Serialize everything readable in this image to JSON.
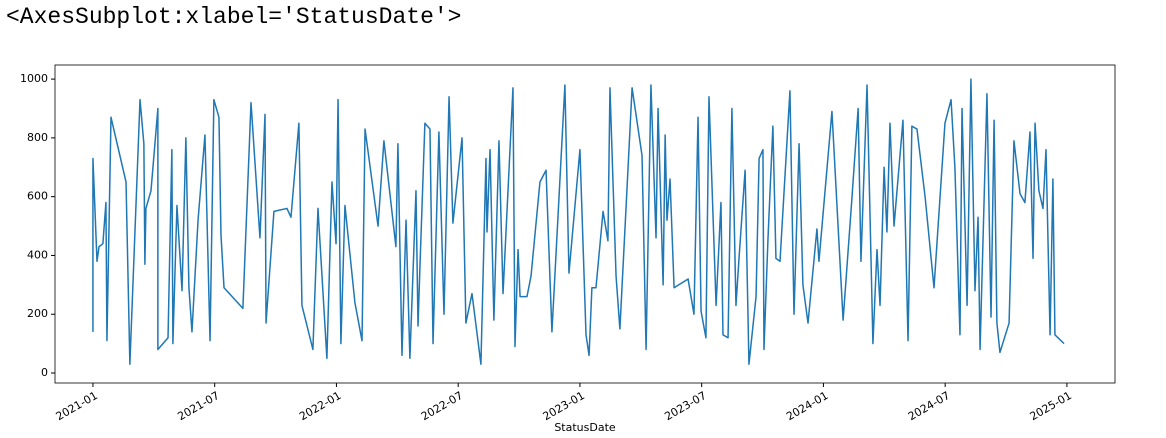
{
  "header": {
    "output": "<AxesSubplot:xlabel='StatusDate'>"
  },
  "chart_data": {
    "type": "line",
    "xlabel": "StatusDate",
    "x": [
      0.0,
      0.0,
      0.2,
      0.3,
      0.49,
      0.64,
      0.69,
      0.89,
      1.63,
      1.82,
      2.32,
      2.51,
      2.56,
      2.61,
      2.86,
      3.2,
      3.2,
      3.7,
      3.89,
      3.94,
      4.14,
      4.39,
      4.58,
      4.73,
      4.88,
      5.18,
      5.52,
      5.77,
      5.96,
      6.21,
      6.31,
      6.46,
      7.39,
      7.79,
      8.23,
      8.48,
      8.53,
      8.92,
      9.56,
      9.76,
      10.15,
      10.3,
      10.84,
      11.09,
      11.53,
      11.78,
      11.98,
      12.08,
      12.22,
      12.42,
      12.91,
      13.26,
      13.41,
      14.05,
      14.34,
      14.93,
      15.03,
      15.23,
      15.43,
      15.62,
      15.92,
      16.02,
      16.12,
      16.36,
      16.61,
      16.76,
      17.05,
      17.3,
      17.55,
      17.74,
      18.19,
      18.38,
      18.68,
      19.12,
      19.37,
      19.42,
      19.57,
      19.76,
      20.01,
      20.21,
      20.7,
      20.8,
      20.95,
      21.05,
      21.39,
      21.59,
      22.03,
      22.33,
      22.62,
      23.26,
      23.46,
      24.0,
      24.3,
      24.45,
      24.59,
      24.79,
      25.14,
      25.38,
      25.48,
      25.78,
      25.97,
      26.57,
      27.06,
      27.26,
      27.5,
      27.75,
      27.85,
      28.1,
      28.2,
      28.29,
      28.44,
      28.64,
      29.33,
      29.62,
      29.82,
      29.97,
      30.21,
      30.36,
      30.71,
      30.95,
      31.05,
      31.3,
      31.49,
      31.69,
      31.84,
      32.14,
      32.33,
      32.68,
      32.83,
      33.02,
      33.07,
      33.27,
      33.51,
      33.66,
      33.86,
      34.35,
      34.55,
      34.8,
      34.99,
      35.24,
      35.68,
      35.78,
      36.42,
      36.97,
      37.41,
      37.71,
      37.85,
      38.15,
      38.44,
      38.64,
      38.79,
      38.99,
      39.13,
      39.28,
      39.48,
      39.92,
      40.17,
      40.36,
      40.61,
      41.01,
      41.45,
      41.99,
      42.29,
      42.48,
      42.73,
      42.83,
      43.08,
      43.27,
      43.47,
      43.62,
      43.72,
      44.06,
      44.26,
      44.41,
      44.55,
      44.7,
      45.15,
      45.39,
      45.69,
      45.93,
      46.18,
      46.33,
      46.43,
      46.62,
      46.82,
      46.97,
      47.17,
      47.31,
      47.41,
      47.86
    ],
    "series": [
      {
        "color": "#1f77b4",
        "values": [
          140,
          730,
          380,
          430,
          440,
          580,
          110,
          870,
          650,
          30,
          930,
          780,
          370,
          560,
          620,
          900,
          80,
          120,
          760,
          100,
          570,
          280,
          800,
          290,
          140,
          520,
          810,
          110,
          930,
          870,
          470,
          290,
          220,
          920,
          460,
          880,
          170,
          550,
          560,
          530,
          850,
          230,
          80,
          560,
          50,
          650,
          440,
          930,
          100,
          570,
          240,
          110,
          830,
          500,
          790,
          430,
          780,
          60,
          520,
          50,
          620,
          160,
          370,
          850,
          830,
          100,
          820,
          200,
          940,
          510,
          800,
          170,
          270,
          30,
          730,
          480,
          760,
          180,
          790,
          270,
          970,
          90,
          420,
          260,
          260,
          330,
          650,
          690,
          140,
          980,
          340,
          760,
          130,
          60,
          290,
          290,
          550,
          450,
          970,
          330,
          150,
          970,
          740,
          80,
          980,
          460,
          900,
          300,
          810,
          520,
          660,
          290,
          320,
          200,
          870,
          210,
          120,
          940,
          230,
          580,
          130,
          120,
          900,
          230,
          390,
          690,
          30,
          260,
          730,
          760,
          80,
          460,
          840,
          390,
          380,
          960,
          200,
          780,
          300,
          170,
          490,
          380,
          890,
          180,
          600,
          900,
          380,
          980,
          100,
          420,
          230,
          700,
          480,
          850,
          500,
          860,
          110,
          840,
          830,
          600,
          290,
          850,
          930,
          700,
          130,
          900,
          230,
          1000,
          280,
          530,
          80,
          950,
          190,
          860,
          170,
          70,
          170,
          790,
          610,
          580,
          820,
          390,
          850,
          620,
          560,
          760,
          130,
          660,
          130,
          100
        ]
      }
    ],
    "xlim": [
      -1.87,
      50.37
    ],
    "ylim": [
      -34,
      1048
    ],
    "xticks": [
      {
        "value": 0,
        "label": "2021-01"
      },
      {
        "value": 6,
        "label": "2021-07"
      },
      {
        "value": 12,
        "label": "2022-01"
      },
      {
        "value": 18,
        "label": "2022-07"
      },
      {
        "value": 24,
        "label": "2023-01"
      },
      {
        "value": 30,
        "label": "2023-07"
      },
      {
        "value": 36,
        "label": "2024-01"
      },
      {
        "value": 42,
        "label": "2024-07"
      },
      {
        "value": 48,
        "label": "2025-01"
      }
    ],
    "yticks": [
      0,
      200,
      400,
      600,
      800,
      1000
    ]
  }
}
